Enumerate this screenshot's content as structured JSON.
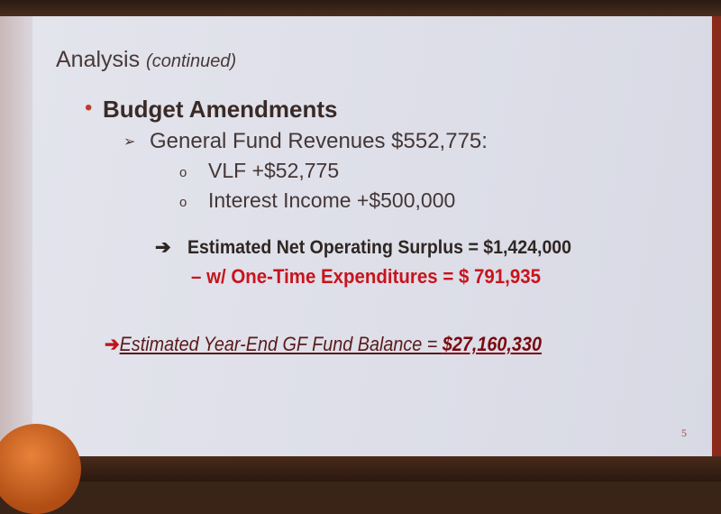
{
  "slide": {
    "title": "Analysis",
    "title_suffix": "(continued)",
    "heading": "Budget Amendments",
    "revenues_line": "General Fund Revenues $552,775:",
    "sub_items": [
      "VLF  +$52,775",
      "Interest Income +$500,000"
    ],
    "surplus_line": "Estimated Net Operating Surplus = $1,424,000",
    "one_time_line": "– w/ One-Time Expenditures    = $  791,935",
    "balance_label": "Estimated Year-End GF Fund Balance = ",
    "balance_value": "$27,160,330",
    "page_number": "5"
  },
  "colors": {
    "accent_red": "#c8141c",
    "text_dark": "#3a2a26"
  }
}
